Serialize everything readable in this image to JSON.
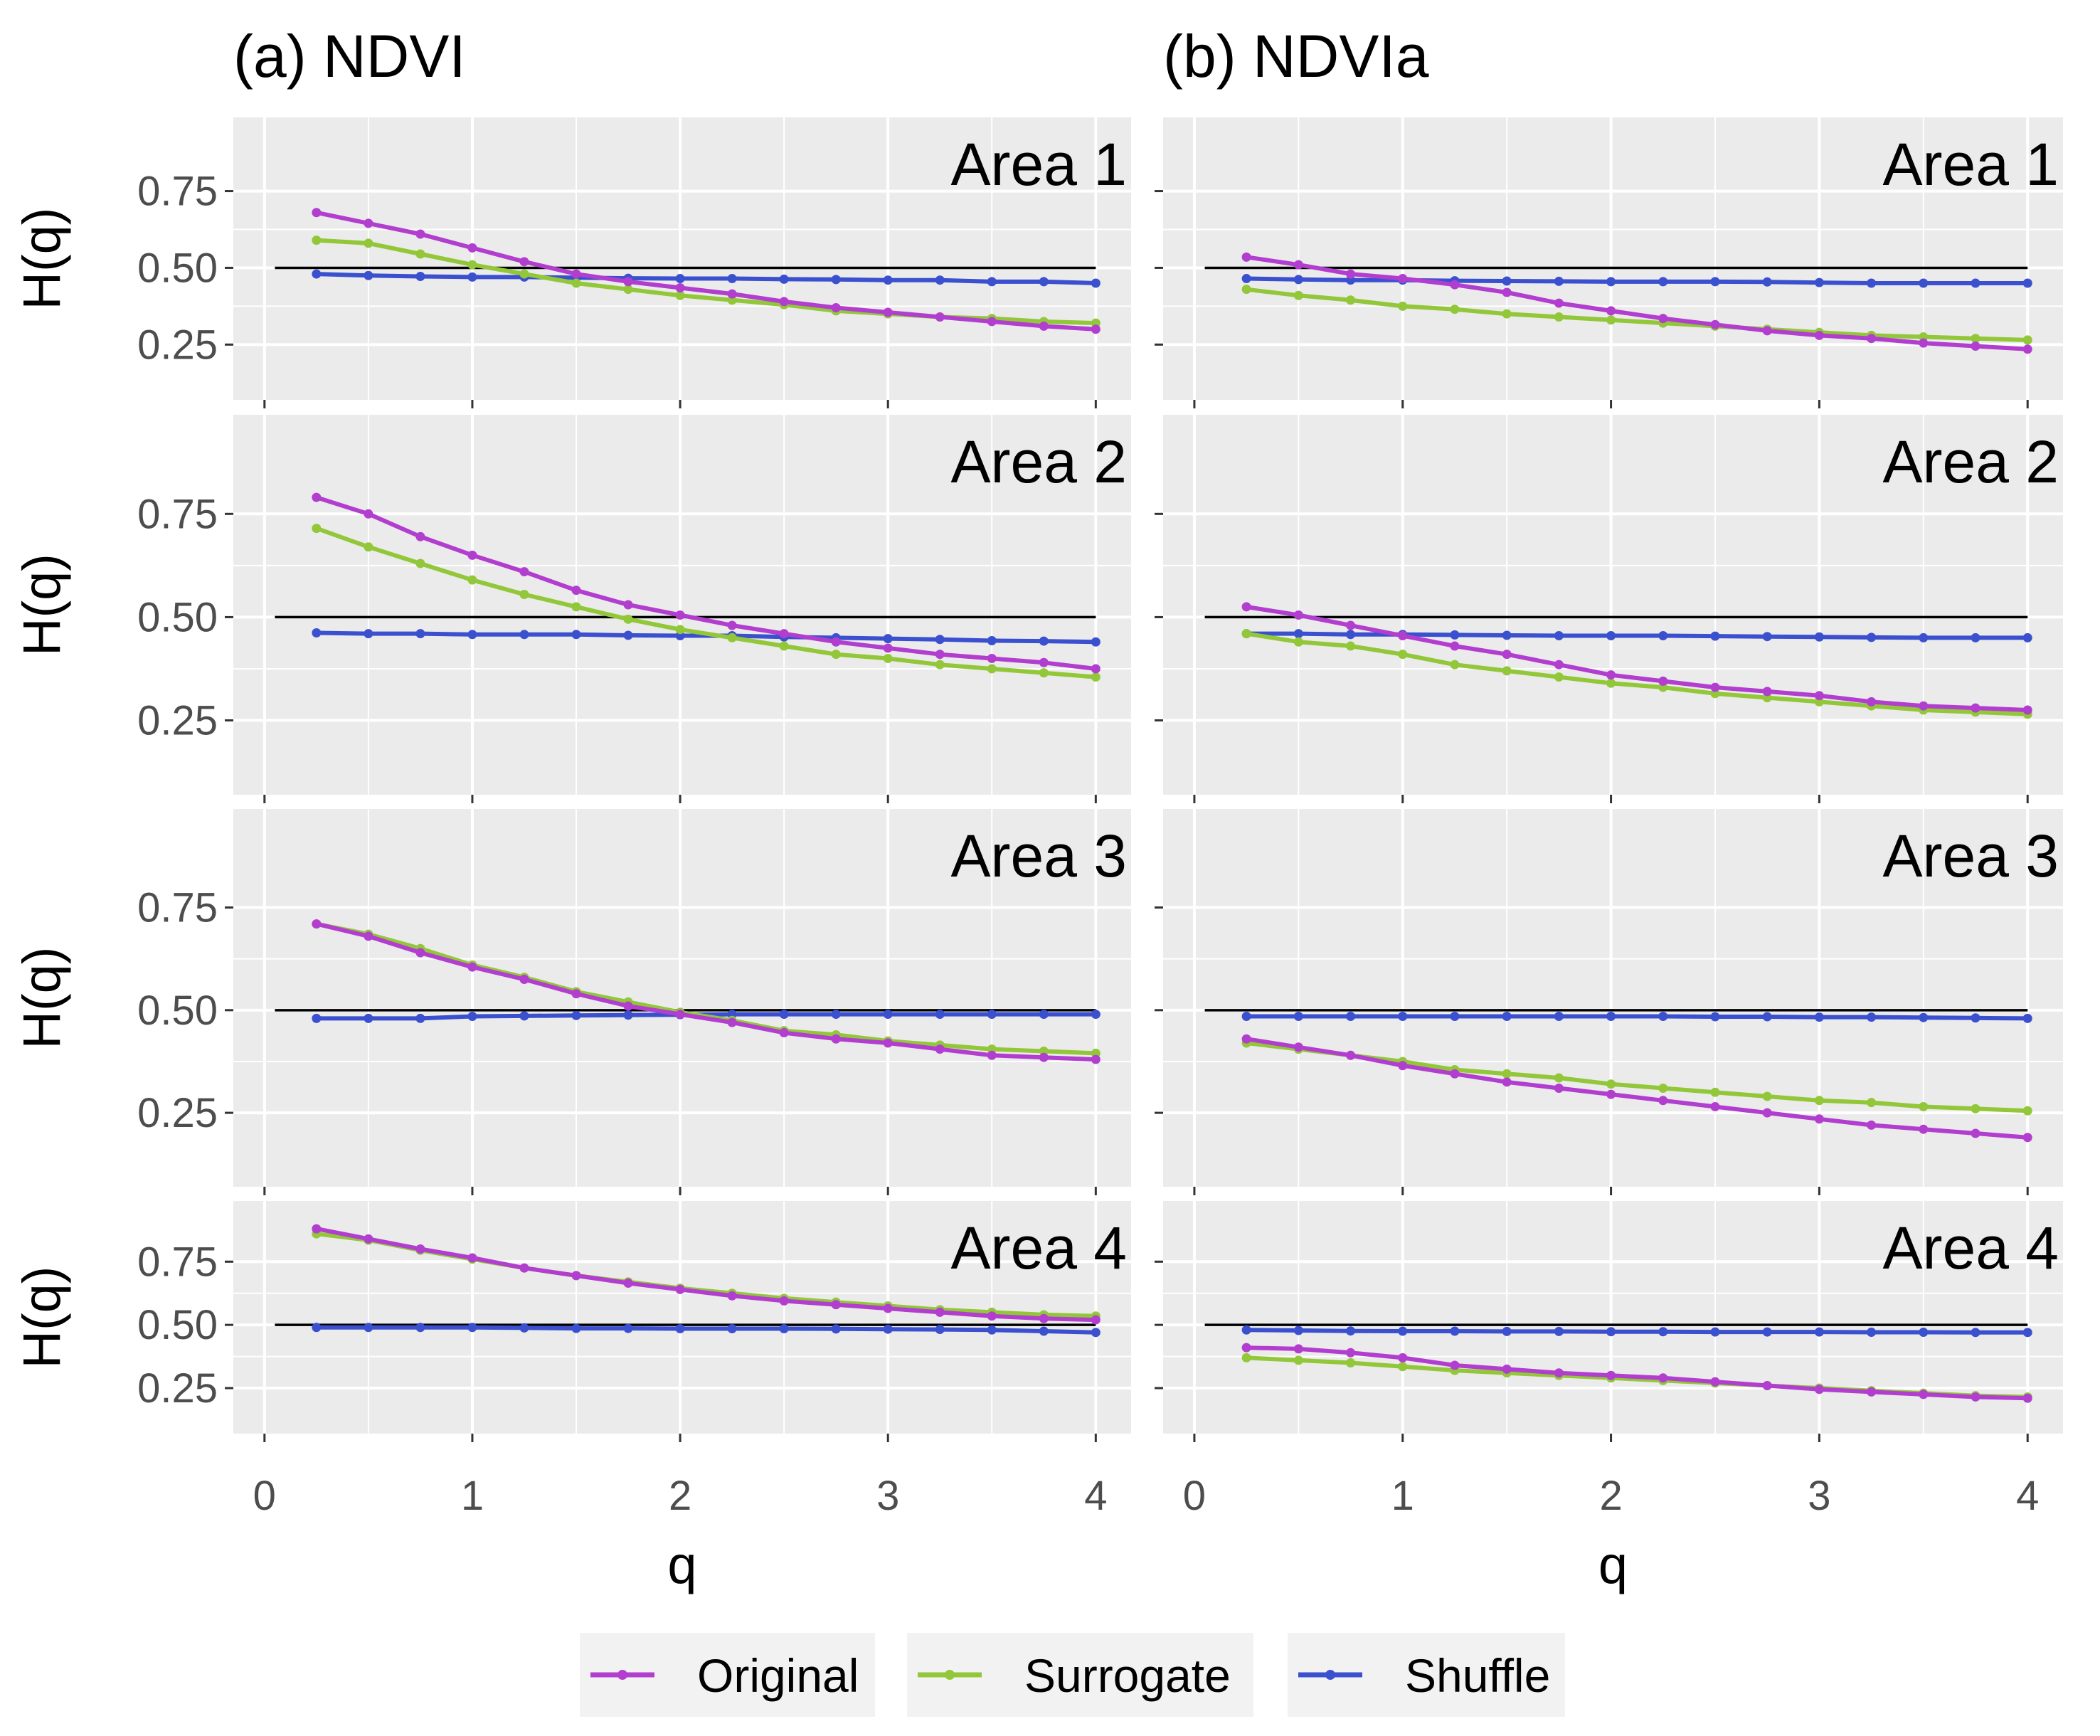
{
  "chart_data": {
    "type": "line",
    "title": "",
    "xlabel": "q",
    "ylabel": "H(q)",
    "xlim": [
      -0.15,
      4.17
    ],
    "x_ticks": [
      "0",
      "1",
      "2",
      "3",
      "4"
    ],
    "y_ticks": [
      "0.25",
      "0.50",
      "0.75"
    ],
    "reference_line": 0.5,
    "legend_position": "bottom",
    "legend": [
      {
        "key": "orig",
        "label": "Original",
        "color": "#b23ecf"
      },
      {
        "key": "surr",
        "label": "Surrogate",
        "color": "#92c73a"
      },
      {
        "key": "shuf",
        "label": "Shuffle",
        "color": "#3b50cf"
      }
    ],
    "columns": [
      {
        "title": "(a) NDVI"
      },
      {
        "title": "(b) NDVIa"
      }
    ],
    "rows": [
      {
        "label": "Area 1",
        "ylim": [
          0.07,
          0.99
        ]
      },
      {
        "label": "Area 2",
        "ylim": [
          0.07,
          0.99
        ]
      },
      {
        "label": "Area 3",
        "ylim": [
          0.07,
          0.99
        ]
      },
      {
        "label": "Area 4",
        "ylim": [
          0.07,
          0.99
        ]
      }
    ],
    "x": [
      0.25,
      0.5,
      0.75,
      1.0,
      1.25,
      1.5,
      1.75,
      2.0,
      2.25,
      2.5,
      2.75,
      3.0,
      3.25,
      3.5,
      3.75,
      4.0
    ],
    "panels": [
      {
        "row": 0,
        "col": 0,
        "series": {
          "orig": [
            0.68,
            0.645,
            0.61,
            0.565,
            0.52,
            0.48,
            0.455,
            0.435,
            0.415,
            0.39,
            0.37,
            0.355,
            0.34,
            0.325,
            0.31,
            0.3
          ],
          "surr": [
            0.59,
            0.58,
            0.545,
            0.51,
            0.48,
            0.45,
            0.43,
            0.41,
            0.395,
            0.38,
            0.36,
            0.35,
            0.34,
            0.335,
            0.325,
            0.32
          ],
          "shuf": [
            0.48,
            0.475,
            0.472,
            0.47,
            0.47,
            0.468,
            0.466,
            0.465,
            0.465,
            0.463,
            0.462,
            0.46,
            0.46,
            0.455,
            0.455,
            0.45
          ]
        }
      },
      {
        "row": 0,
        "col": 1,
        "series": {
          "orig": [
            0.535,
            0.51,
            0.48,
            0.465,
            0.445,
            0.42,
            0.385,
            0.36,
            0.335,
            0.315,
            0.295,
            0.28,
            0.27,
            0.255,
            0.245,
            0.235
          ],
          "surr": [
            0.43,
            0.41,
            0.395,
            0.375,
            0.365,
            0.35,
            0.34,
            0.33,
            0.32,
            0.31,
            0.3,
            0.29,
            0.28,
            0.275,
            0.27,
            0.265
          ],
          "shuf": [
            0.465,
            0.462,
            0.46,
            0.46,
            0.458,
            0.457,
            0.456,
            0.455,
            0.455,
            0.455,
            0.454,
            0.452,
            0.45,
            0.45,
            0.45,
            0.45
          ]
        }
      },
      {
        "row": 1,
        "col": 0,
        "series": {
          "orig": [
            0.79,
            0.75,
            0.695,
            0.65,
            0.61,
            0.565,
            0.53,
            0.505,
            0.48,
            0.46,
            0.44,
            0.425,
            0.41,
            0.4,
            0.39,
            0.375
          ],
          "surr": [
            0.715,
            0.67,
            0.63,
            0.59,
            0.555,
            0.525,
            0.495,
            0.47,
            0.45,
            0.43,
            0.41,
            0.4,
            0.385,
            0.375,
            0.365,
            0.355
          ],
          "shuf": [
            0.462,
            0.46,
            0.46,
            0.458,
            0.458,
            0.458,
            0.456,
            0.455,
            0.455,
            0.452,
            0.45,
            0.448,
            0.446,
            0.443,
            0.442,
            0.44
          ]
        }
      },
      {
        "row": 1,
        "col": 1,
        "series": {
          "orig": [
            0.525,
            0.505,
            0.48,
            0.455,
            0.43,
            0.41,
            0.385,
            0.36,
            0.345,
            0.33,
            0.32,
            0.31,
            0.295,
            0.285,
            0.28,
            0.275
          ],
          "surr": [
            0.46,
            0.44,
            0.43,
            0.41,
            0.385,
            0.37,
            0.355,
            0.34,
            0.33,
            0.315,
            0.305,
            0.295,
            0.285,
            0.275,
            0.27,
            0.265
          ],
          "shuf": [
            0.46,
            0.46,
            0.458,
            0.458,
            0.457,
            0.456,
            0.455,
            0.455,
            0.455,
            0.454,
            0.453,
            0.452,
            0.451,
            0.45,
            0.45,
            0.45
          ]
        }
      },
      {
        "row": 2,
        "col": 0,
        "series": {
          "orig": [
            0.71,
            0.68,
            0.64,
            0.605,
            0.575,
            0.54,
            0.51,
            0.49,
            0.47,
            0.445,
            0.43,
            0.42,
            0.405,
            0.39,
            0.385,
            0.38
          ],
          "surr": [
            0.71,
            0.685,
            0.65,
            0.61,
            0.58,
            0.545,
            0.52,
            0.495,
            0.475,
            0.45,
            0.44,
            0.425,
            0.415,
            0.405,
            0.4,
            0.395
          ],
          "shuf": [
            0.48,
            0.48,
            0.48,
            0.485,
            0.486,
            0.487,
            0.488,
            0.489,
            0.49,
            0.49,
            0.49,
            0.49,
            0.49,
            0.49,
            0.49,
            0.49
          ]
        }
      },
      {
        "row": 2,
        "col": 1,
        "series": {
          "orig": [
            0.43,
            0.41,
            0.39,
            0.365,
            0.345,
            0.325,
            0.31,
            0.295,
            0.28,
            0.265,
            0.25,
            0.235,
            0.22,
            0.21,
            0.2,
            0.19
          ],
          "surr": [
            0.42,
            0.405,
            0.39,
            0.375,
            0.355,
            0.345,
            0.335,
            0.32,
            0.31,
            0.3,
            0.29,
            0.28,
            0.275,
            0.265,
            0.26,
            0.255
          ],
          "shuf": [
            0.485,
            0.485,
            0.485,
            0.485,
            0.485,
            0.485,
            0.485,
            0.485,
            0.485,
            0.484,
            0.484,
            0.483,
            0.483,
            0.482,
            0.481,
            0.48
          ]
        }
      },
      {
        "row": 3,
        "col": 0,
        "series": {
          "orig": [
            0.88,
            0.84,
            0.8,
            0.765,
            0.725,
            0.695,
            0.665,
            0.64,
            0.615,
            0.595,
            0.58,
            0.565,
            0.55,
            0.535,
            0.525,
            0.52
          ],
          "surr": [
            0.86,
            0.835,
            0.795,
            0.76,
            0.725,
            0.695,
            0.67,
            0.645,
            0.625,
            0.605,
            0.59,
            0.575,
            0.56,
            0.55,
            0.54,
            0.535
          ],
          "shuf": [
            0.49,
            0.49,
            0.49,
            0.49,
            0.488,
            0.486,
            0.486,
            0.485,
            0.485,
            0.485,
            0.484,
            0.483,
            0.482,
            0.48,
            0.475,
            0.47
          ]
        }
      },
      {
        "row": 3,
        "col": 1,
        "series": {
          "orig": [
            0.41,
            0.405,
            0.39,
            0.37,
            0.34,
            0.325,
            0.31,
            0.3,
            0.29,
            0.275,
            0.26,
            0.245,
            0.235,
            0.225,
            0.215,
            0.21
          ],
          "surr": [
            0.37,
            0.36,
            0.35,
            0.335,
            0.32,
            0.31,
            0.3,
            0.29,
            0.28,
            0.27,
            0.26,
            0.25,
            0.24,
            0.23,
            0.22,
            0.215
          ],
          "shuf": [
            0.48,
            0.478,
            0.476,
            0.475,
            0.475,
            0.474,
            0.474,
            0.473,
            0.473,
            0.472,
            0.472,
            0.472,
            0.471,
            0.471,
            0.47,
            0.47
          ]
        }
      }
    ]
  }
}
